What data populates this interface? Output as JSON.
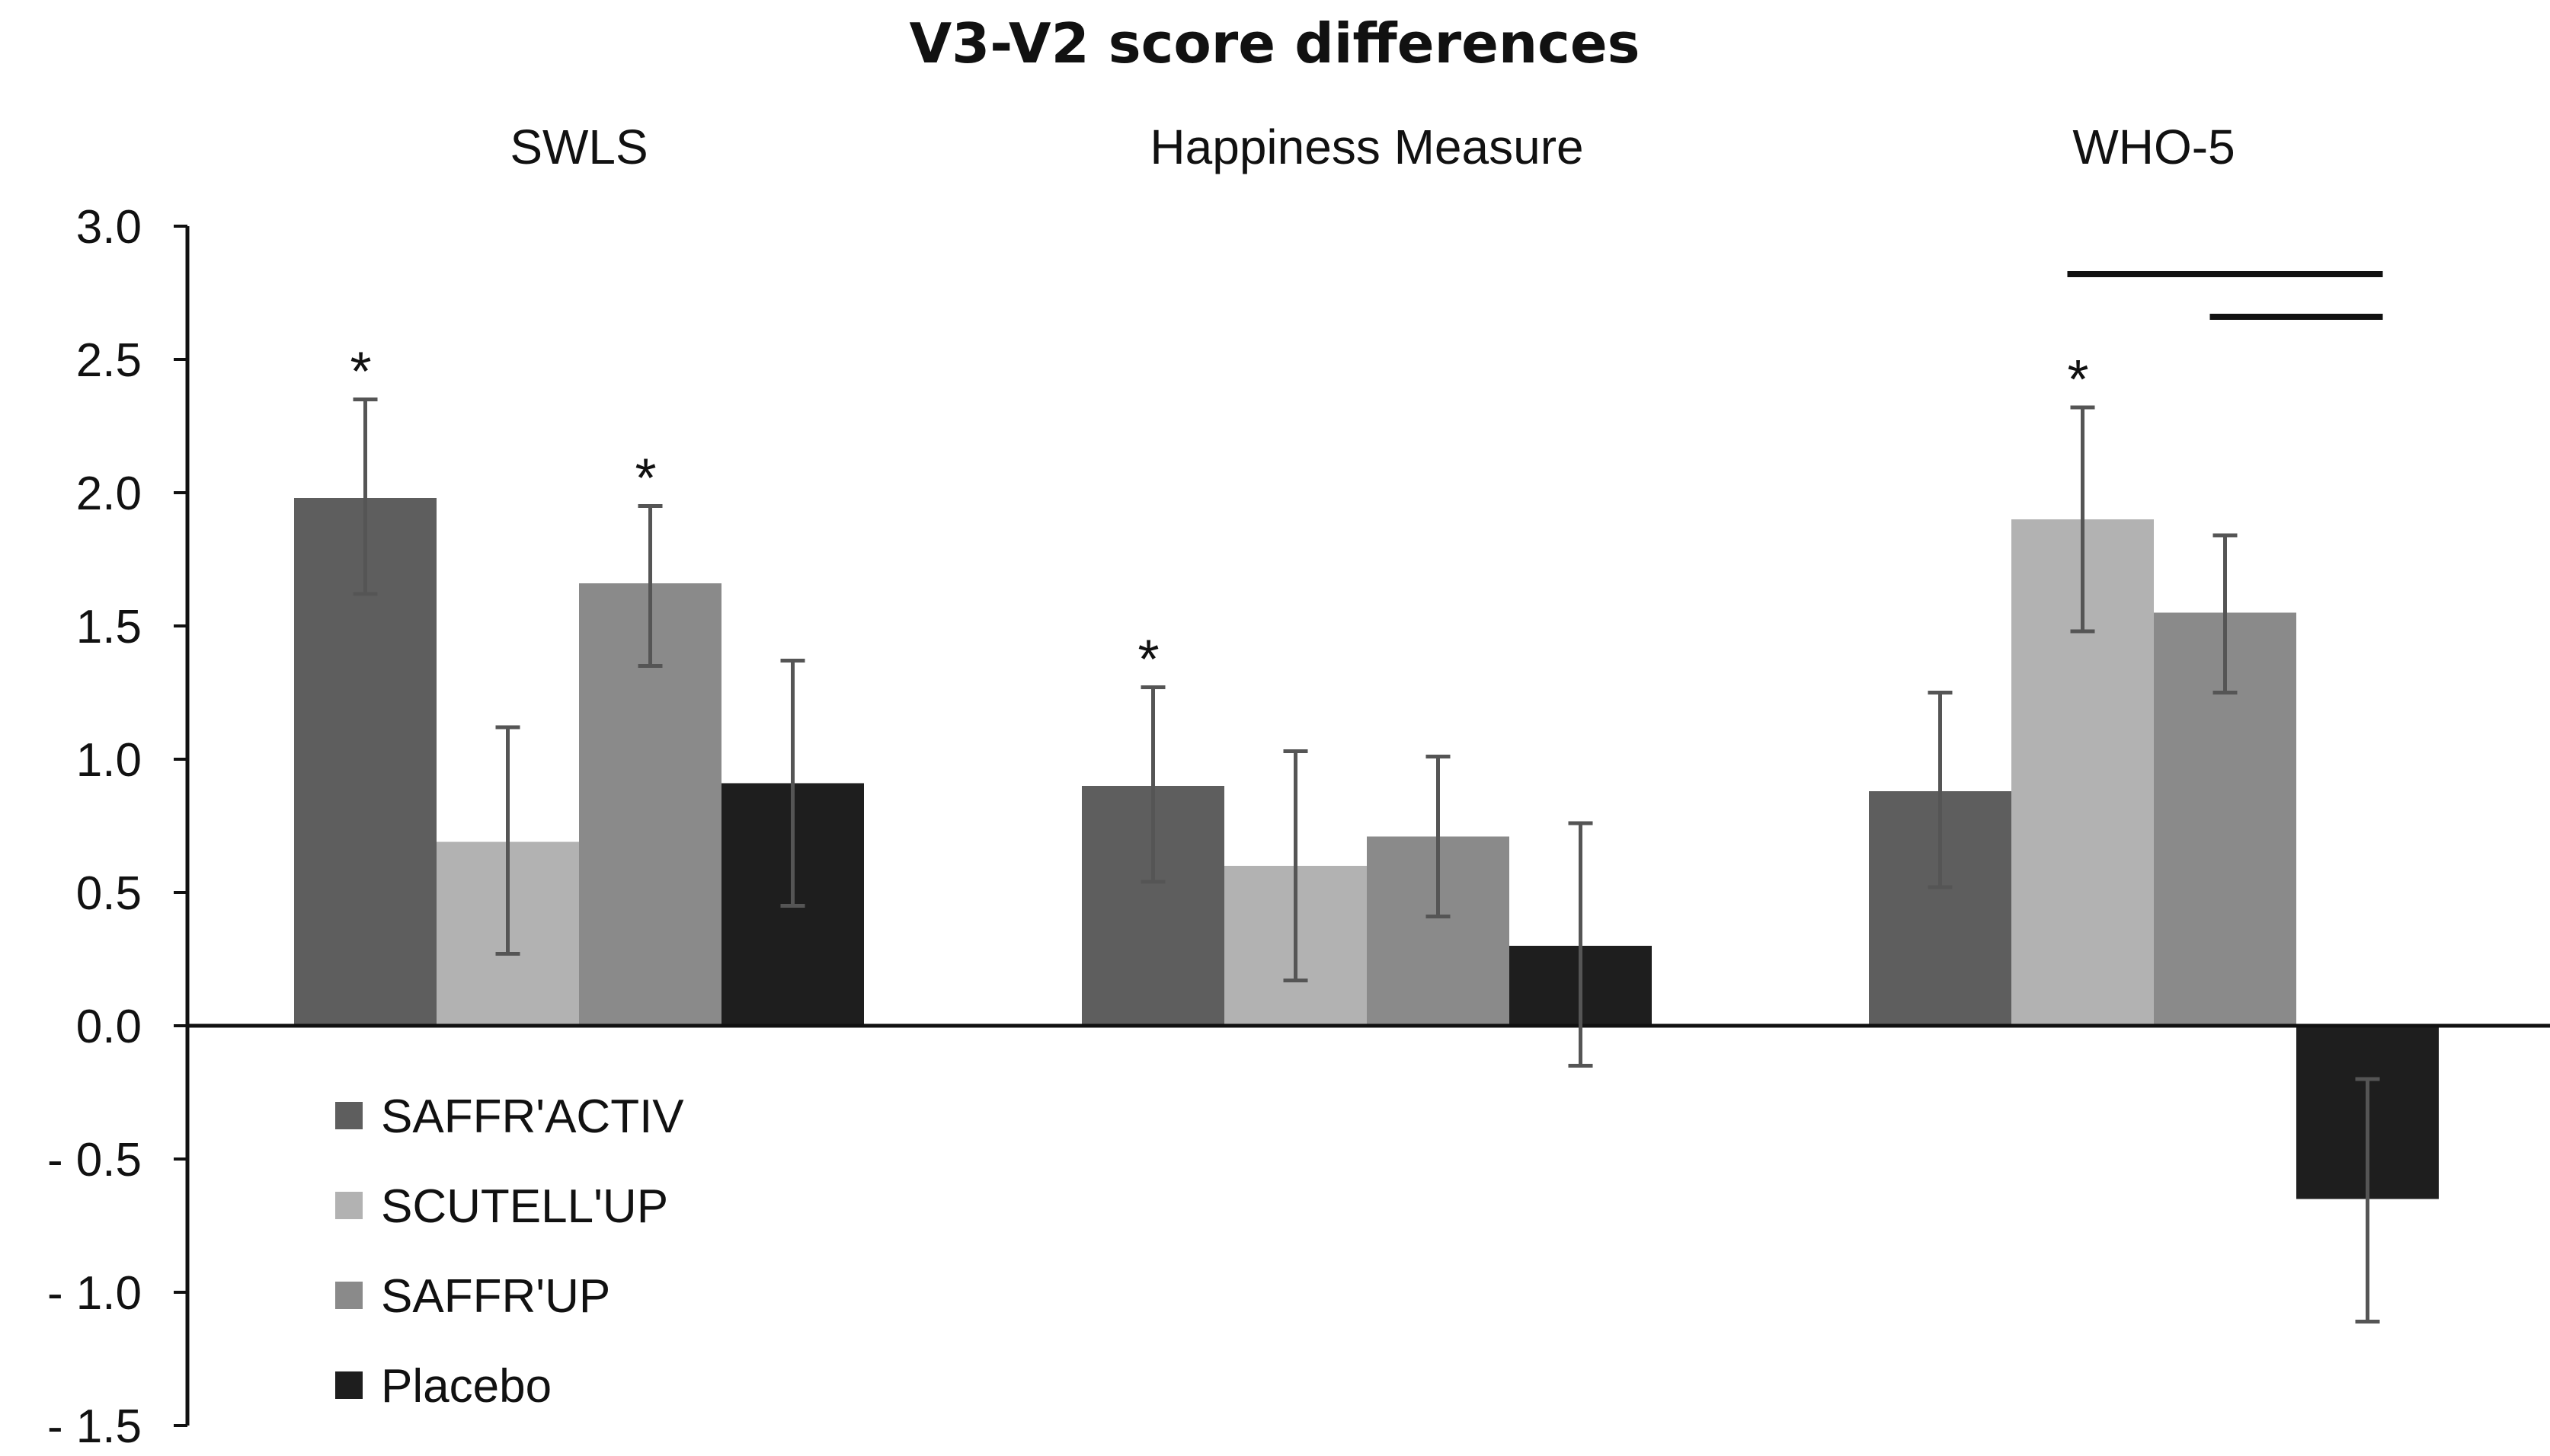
{
  "chart_data": {
    "type": "bar",
    "title": "V3-V2 score differences",
    "groups": [
      "SWLS",
      "Happiness Measure",
      "WHO-5"
    ],
    "series": [
      {
        "name": "SAFFR'ACTIV",
        "color": "#5e5e5e",
        "values": [
          1.98,
          0.9,
          0.88
        ],
        "err_low": [
          1.62,
          0.54,
          0.52
        ],
        "err_high": [
          2.35,
          1.27,
          1.25
        ]
      },
      {
        "name": "SCUTELL'UP",
        "color": "#b2b2b2",
        "values": [
          0.69,
          0.6,
          1.9
        ],
        "err_low": [
          0.27,
          0.17,
          1.48
        ],
        "err_high": [
          1.12,
          1.03,
          2.32
        ]
      },
      {
        "name": "SAFFR'UP",
        "color": "#8a8a8a",
        "values": [
          1.66,
          0.71,
          1.55
        ],
        "err_low": [
          1.35,
          0.41,
          1.25
        ],
        "err_high": [
          1.95,
          1.01,
          1.84
        ]
      },
      {
        "name": "Placebo",
        "color": "#1e1e1e",
        "values": [
          0.91,
          0.3,
          -0.65
        ],
        "err_low": [
          0.45,
          -0.15,
          -1.11
        ],
        "err_high": [
          1.37,
          0.76,
          -0.2
        ]
      }
    ],
    "significance_marks": [
      {
        "label": "*",
        "group": 0,
        "series": 0
      },
      {
        "label": "*",
        "group": 0,
        "series": 2
      },
      {
        "label": "*",
        "group": 1,
        "series": 0
      },
      {
        "label": "*",
        "group": 2,
        "series": 1
      }
    ],
    "significance_brackets": [
      {
        "group": 2,
        "from_series": 1,
        "to_series": 3,
        "level": 2.82
      },
      {
        "group": 2,
        "from_series": 2,
        "to_series": 3,
        "level": 2.66
      }
    ],
    "ylim": [
      -1.5,
      3.0
    ],
    "yticks": [
      "3.0",
      "2.5",
      "2.0",
      "1.5",
      "1.0",
      "0.5",
      "0.0",
      "- 0.5",
      "- 1.0",
      "- 1.5"
    ],
    "xlabel": "",
    "ylabel": "",
    "legend": "bottom-left",
    "grid": false
  }
}
